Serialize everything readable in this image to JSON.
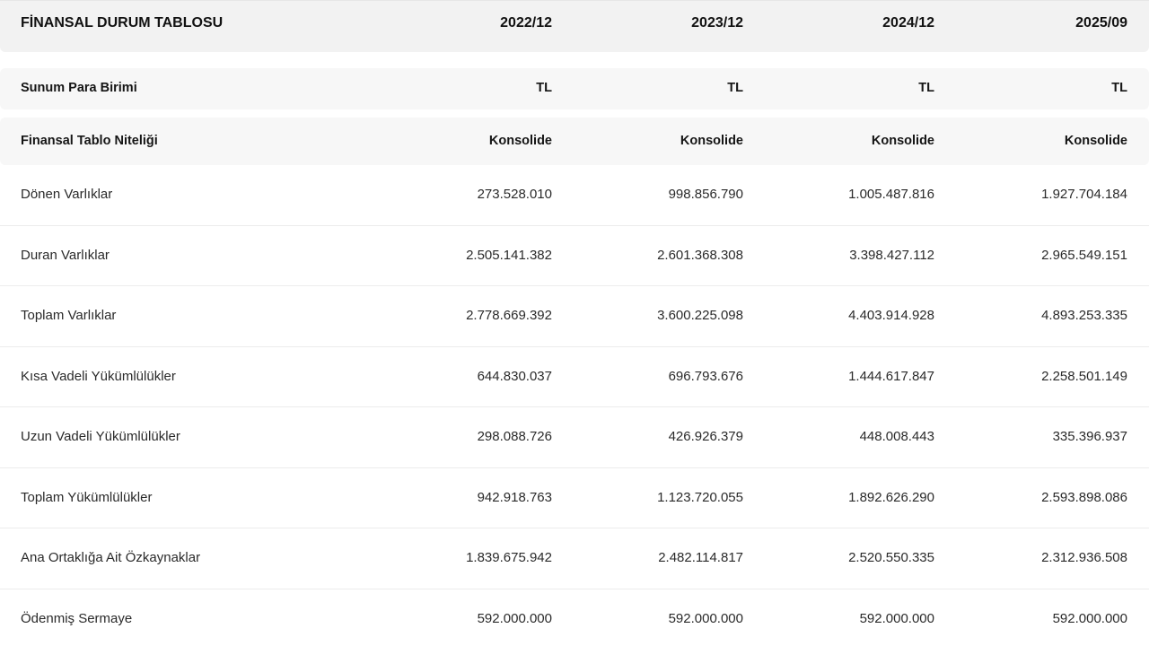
{
  "header": {
    "title": "FİNANSAL DURUM TABLOSU",
    "periods": [
      "2022/12",
      "2023/12",
      "2024/12",
      "2025/09"
    ]
  },
  "meta": [
    {
      "label": "Sunum Para Birimi",
      "values": [
        "TL",
        "TL",
        "TL",
        "TL"
      ]
    },
    {
      "label": "Finansal Tablo Niteliği",
      "values": [
        "Konsolide",
        "Konsolide",
        "Konsolide",
        "Konsolide"
      ]
    }
  ],
  "rows": [
    {
      "label": "Dönen Varlıklar",
      "values": [
        "273.528.010",
        "998.856.790",
        "1.005.487.816",
        "1.927.704.184"
      ]
    },
    {
      "label": "Duran Varlıklar",
      "values": [
        "2.505.141.382",
        "2.601.368.308",
        "3.398.427.112",
        "2.965.549.151"
      ]
    },
    {
      "label": "Toplam Varlıklar",
      "values": [
        "2.778.669.392",
        "3.600.225.098",
        "4.403.914.928",
        "4.893.253.335"
      ]
    },
    {
      "label": "Kısa Vadeli Yükümlülükler",
      "values": [
        "644.830.037",
        "696.793.676",
        "1.444.617.847",
        "2.258.501.149"
      ]
    },
    {
      "label": "Uzun Vadeli Yükümlülükler",
      "values": [
        "298.088.726",
        "426.926.379",
        "448.008.443",
        "335.396.937"
      ]
    },
    {
      "label": "Toplam Yükümlülükler",
      "values": [
        "942.918.763",
        "1.123.720.055",
        "1.892.626.290",
        "2.593.898.086"
      ]
    },
    {
      "label": "Ana Ortaklığa Ait Özkaynaklar",
      "values": [
        "1.839.675.942",
        "2.482.114.817",
        "2.520.550.335",
        "2.312.936.508"
      ]
    },
    {
      "label": "Ödenmiş Sermaye",
      "values": [
        "592.000.000",
        "592.000.000",
        "592.000.000",
        "592.000.000"
      ]
    }
  ]
}
